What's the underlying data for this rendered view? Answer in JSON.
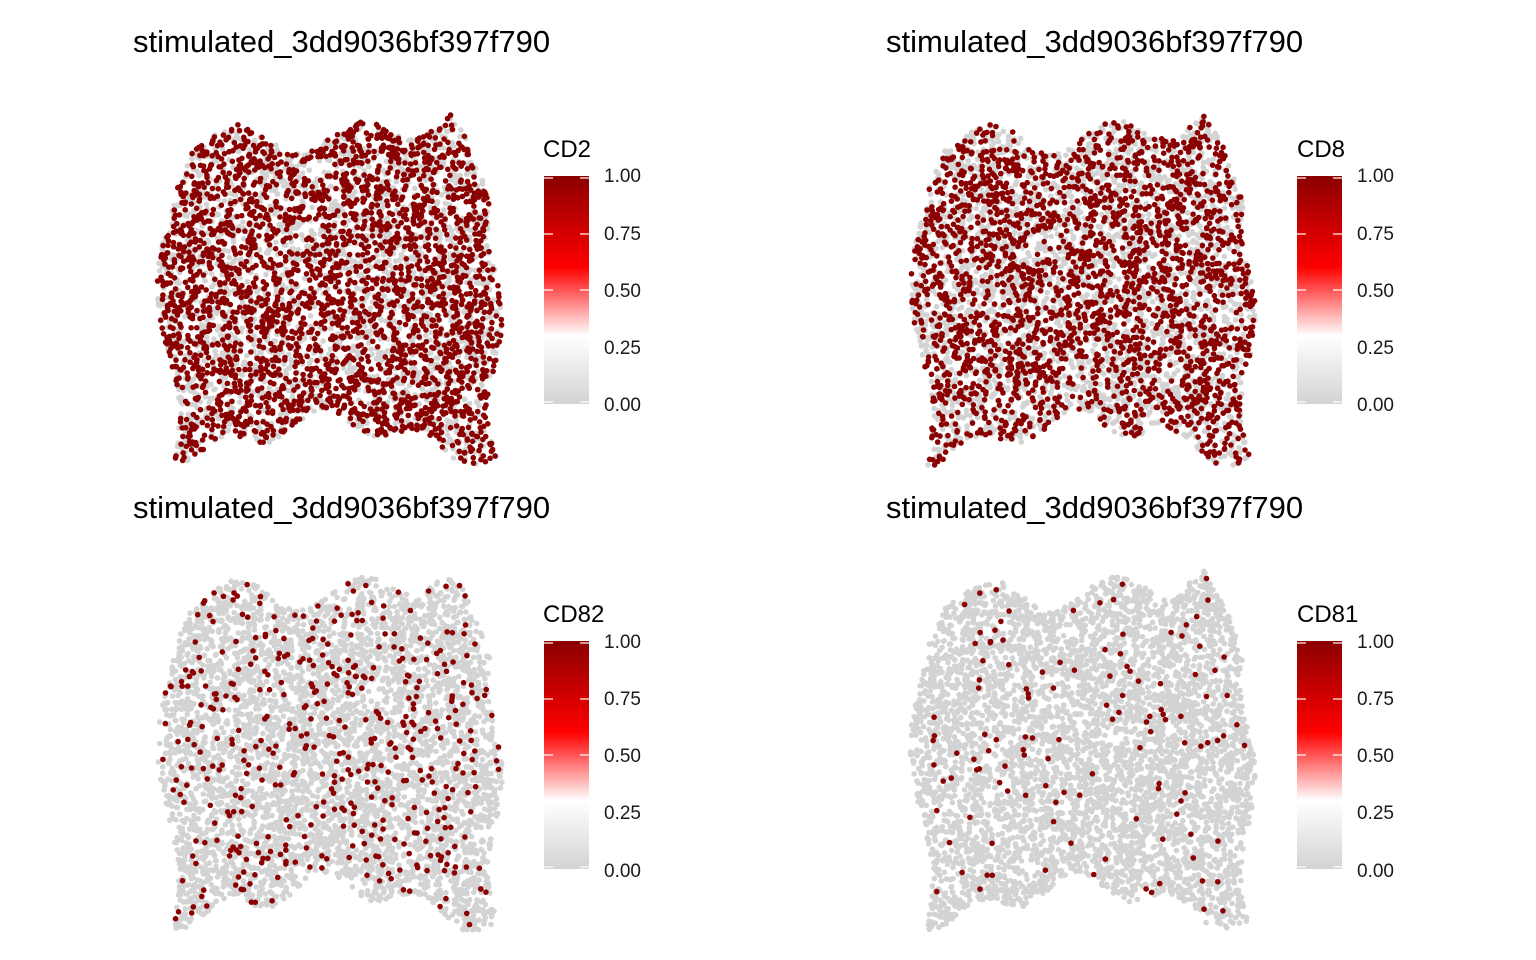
{
  "figure": {
    "colors": {
      "background": "#ffffff",
      "point_negative": "#d3d3d3",
      "point_positive": "#8b0000",
      "gradient": [
        "#d3d3d3",
        "#ffffff",
        "#ff0000",
        "#8b0000"
      ],
      "gradient_stops": [
        0.0,
        0.3,
        0.6,
        1.0
      ]
    },
    "layout": "2x2 grid"
  },
  "chart_data": [
    {
      "type": "scatter",
      "title": "stimulated_3dd9036bf397f790",
      "legend_title": "CD2",
      "legend_ticks": [
        "1.00",
        "0.75",
        "0.50",
        "0.25",
        "0.00"
      ],
      "legend_range": [
        0,
        1
      ],
      "legend_position": "right",
      "grid": false,
      "axes": "none",
      "expressing_fraction": 0.55
    },
    {
      "type": "scatter",
      "title": "stimulated_3dd9036bf397f790",
      "legend_title": "CD8",
      "legend_ticks": [
        "1.00",
        "0.75",
        "0.50",
        "0.25",
        "0.00"
      ],
      "legend_range": [
        0,
        1
      ],
      "legend_position": "right",
      "grid": false,
      "axes": "none",
      "expressing_fraction": 0.45
    },
    {
      "type": "scatter",
      "title": "stimulated_3dd9036bf397f790",
      "legend_title": "CD82",
      "legend_ticks": [
        "1.00",
        "0.75",
        "0.50",
        "0.25",
        "0.00"
      ],
      "legend_range": [
        0,
        1
      ],
      "legend_position": "right",
      "grid": false,
      "axes": "none",
      "expressing_fraction": 0.09
    },
    {
      "type": "scatter",
      "title": "stimulated_3dd9036bf397f790",
      "legend_title": "CD81",
      "legend_ticks": [
        "1.00",
        "0.75",
        "0.50",
        "0.25",
        "0.00"
      ],
      "legend_range": [
        0,
        1
      ],
      "legend_position": "right",
      "grid": false,
      "axes": "none",
      "expressing_fraction": 0.025
    }
  ]
}
